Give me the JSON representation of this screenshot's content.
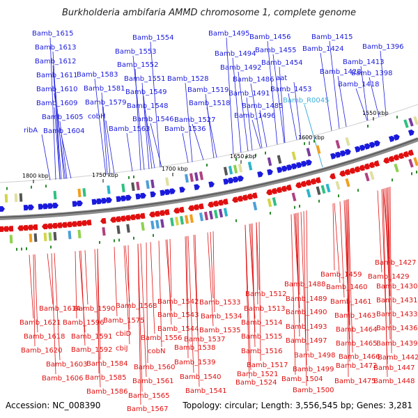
{
  "title": "Burkholderia ambifaria AMMD chromosome 1, complete genome",
  "footer": {
    "accession": "Accession: NC_008390",
    "stats": "Topology: circular; Length: 3,556,545 bp; Genes: 3,281"
  },
  "colors": {
    "forward": "#1a1adc",
    "reverse": "#e01010",
    "rna": "#3aaedc",
    "backbone": "#888888",
    "tick_mark": "#2a8a2a"
  },
  "ticks": [
    "1800 kbp",
    "1750 kbp",
    "1700 kbp",
    "1650 kbp",
    "1600 kbp",
    "1550 kbp"
  ],
  "top_labels": [
    "Bamb_1615",
    "Bamb_1613",
    "Bamb_1612",
    "Bamb_1611",
    "Bamb_1610",
    "Bamb_1609",
    "Bamb_1605",
    "ribA",
    "Bamb_1604",
    "Bamb_1583",
    "Bamb_1581",
    "Bamb_1579",
    "cobH",
    "Bamb_1554",
    "Bamb_1553",
    "Bamb_1552",
    "Bamb_1551",
    "Bamb_1549",
    "Bamb_1548",
    "Bamb_1546",
    "Bamb_1563",
    "Bamb_1528",
    "Bamb_1519",
    "Bamb_1518",
    "Bamb_1527",
    "Bamb_1536",
    "Bamb_1495",
    "Bamb_1494",
    "Bamb_1492",
    "Bamb_1486",
    "Bamb_1491",
    "Bamb_1485",
    "Bamb_1496",
    "Bamb_1456",
    "Bamb_1455",
    "Bamb_1454",
    "aat",
    "Bamb_1453",
    "Bamb_1415",
    "Bamb_1424",
    "Bamb_1396",
    "Bamb_1413",
    "Bamb_1428",
    "Bamb_1398",
    "Bamb_1418"
  ],
  "rna_label": "Bamb_R0045",
  "bottom_labels": [
    "Bamb_1614",
    "Bamb_1621",
    "Bamb_1618",
    "Bamb_1620",
    "Bamb_1603",
    "Bamb_1606",
    "Bamb_1590",
    "Bamb_1596",
    "Bamb_1591",
    "Bamb_1592",
    "Bamb_1584",
    "Bamb_1585",
    "Bamb_1586",
    "Bamb_1568",
    "Bamb_1575",
    "cbiD",
    "cbiJ",
    "Bamb_1556",
    "cobN",
    "Bamb_1560",
    "Bamb_1561",
    "Bamb_1565",
    "Bamb_1567",
    "Bamb_1542",
    "Bamb_1543",
    "Bamb_1544",
    "Bamb_1538",
    "Bamb_1539",
    "Bamb_1540",
    "Bamb_1541",
    "Bamb_1533",
    "Bamb_1534",
    "Bamb_1535",
    "Bamb_1537",
    "Bamb_1512",
    "Bamb_1513",
    "Bamb_1514",
    "Bamb_1515",
    "Bamb_1516",
    "Bamb_1517",
    "Bamb_1521",
    "Bamb_1524",
    "Bamb_1488",
    "Bamb_1489",
    "Bamb_1490",
    "Bamb_1493",
    "Bamb_1497",
    "Bamb_1498",
    "Bamb_1499",
    "Bamb_1504",
    "Bamb_1500",
    "Bamb_1459",
    "Bamb_1460",
    "Bamb_1461",
    "Bamb_1463",
    "Bamb_1464",
    "Bamb_1465",
    "Bamb_1466",
    "Bamb_1472",
    "Bamb_1475",
    "Bamb_1427",
    "Bamb_1429",
    "Bamb_1430",
    "Bamb_1431",
    "Bamb_1433",
    "Bamb_1436",
    "Bamb_1439",
    "Bamb_1442",
    "Bamb_1447",
    "Bamb_1448"
  ]
}
